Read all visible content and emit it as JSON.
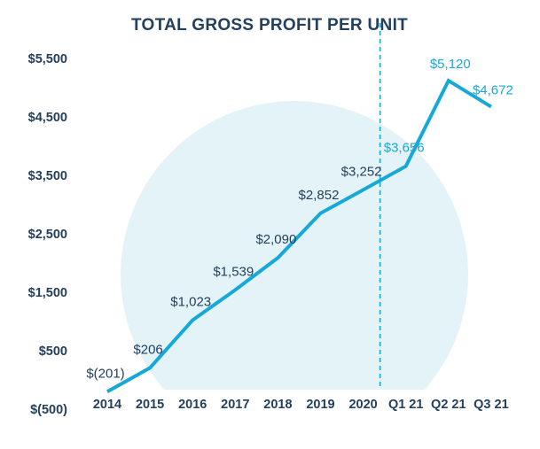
{
  "colors": {
    "line": "#16a9d8",
    "circle": "#e4f3f8",
    "divider": "#16a9d8",
    "label_dark": "#24405e",
    "label_accent": "#16a9d8",
    "tick_text": "#24405e"
  },
  "chart_data": {
    "type": "line",
    "title": "TOTAL GROSS PROFIT PER UNIT",
    "xlabel": "",
    "ylabel": "",
    "categories": [
      "2014",
      "2015",
      "2016",
      "2017",
      "2018",
      "2019",
      "2020",
      "Q1 21",
      "Q2 21",
      "Q3 21"
    ],
    "y_ticks": [
      {
        "value": 5500,
        "label": "$5,500"
      },
      {
        "value": 4500,
        "label": "$4,500"
      },
      {
        "value": 3500,
        "label": "$3,500"
      },
      {
        "value": 2500,
        "label": "$2,500"
      },
      {
        "value": 1500,
        "label": "$1,500"
      },
      {
        "value": 500,
        "label": "$500"
      },
      {
        "value": -500,
        "label": "$(500)"
      }
    ],
    "ylim": [
      -500,
      5500
    ],
    "grid": false,
    "divider_after": "2020",
    "series": [
      {
        "values": [
          -201,
          206,
          1023,
          1539,
          2090,
          2852,
          3252,
          3656,
          5120,
          4672
        ],
        "data_labels": [
          "$(201)",
          "$206",
          "$1,023",
          "$1,539",
          "$2,090",
          "$2,852",
          "$3,252",
          "$3,656",
          "$5,120",
          "$4,672"
        ],
        "label_highlight": [
          false,
          false,
          false,
          false,
          false,
          false,
          false,
          true,
          true,
          true
        ]
      }
    ]
  }
}
